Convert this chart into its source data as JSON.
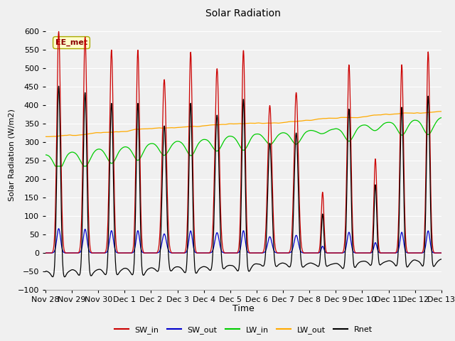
{
  "title": "Solar Radiation",
  "xlabel": "Time",
  "ylabel": "Solar Radiation (W/m2)",
  "annotation_text": "EE_met",
  "ylim": [
    -100,
    630
  ],
  "bg_color": "#f0f0f0",
  "line_colors": {
    "SW_in": "#cc0000",
    "SW_out": "#0000cc",
    "LW_in": "#00cc00",
    "LW_out": "#ffaa00",
    "Rnet": "#000000"
  },
  "xtick_labels": [
    "Nov 28",
    "Nov 29",
    "Nov 30",
    "Dec 1",
    "Dec 2",
    "Dec 3",
    "Dec 4",
    "Dec 5",
    "Dec 6",
    "Dec 7",
    "Dec 8",
    "Dec 9",
    "Dec 10",
    "Dec 11",
    "Dec 12",
    "Dec 13"
  ],
  "sw_peaks": [
    600,
    585,
    550,
    550,
    470,
    545,
    500,
    550,
    400,
    435,
    165,
    510,
    255,
    510,
    545,
    0
  ],
  "sw_widths": [
    0.07,
    0.07,
    0.07,
    0.065,
    0.08,
    0.065,
    0.08,
    0.065,
    0.08,
    0.08,
    0.05,
    0.07,
    0.055,
    0.065,
    0.065,
    0.065
  ],
  "n_days": 15,
  "pts_per_day": 96
}
